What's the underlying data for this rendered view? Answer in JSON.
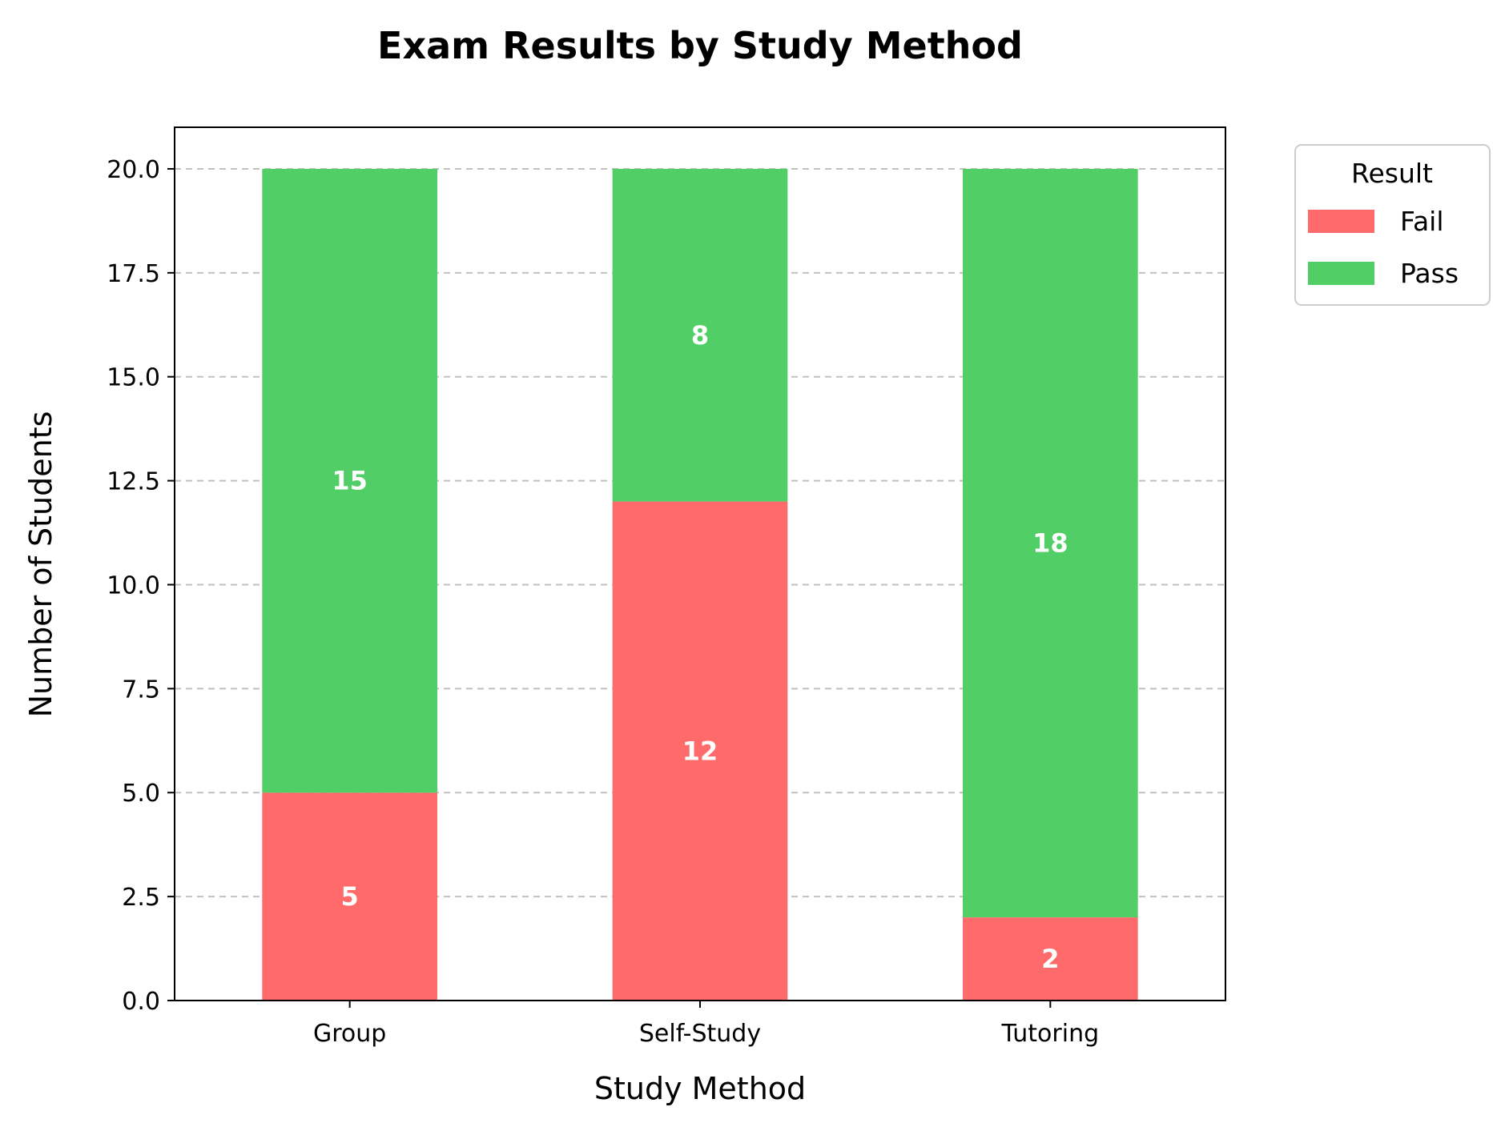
{
  "chart_data": {
    "type": "bar",
    "stacked": true,
    "title": "Exam Results by Study Method",
    "xlabel": "Study Method",
    "ylabel": "Number of Students",
    "categories": [
      "Group",
      "Self-Study",
      "Tutoring"
    ],
    "series": [
      {
        "name": "Fail",
        "values": [
          5,
          12,
          2
        ],
        "color": "#ff6b6b"
      },
      {
        "name": "Pass",
        "values": [
          15,
          8,
          18
        ],
        "color": "#51cf66"
      }
    ],
    "ylim": [
      0,
      21
    ],
    "yticks": [
      "0.0",
      "2.5",
      "5.0",
      "7.5",
      "10.0",
      "12.5",
      "15.0",
      "17.5",
      "20.0"
    ],
    "grid": "y-dashed",
    "legend": {
      "title": "Result",
      "placement": "outside-top-right"
    }
  }
}
